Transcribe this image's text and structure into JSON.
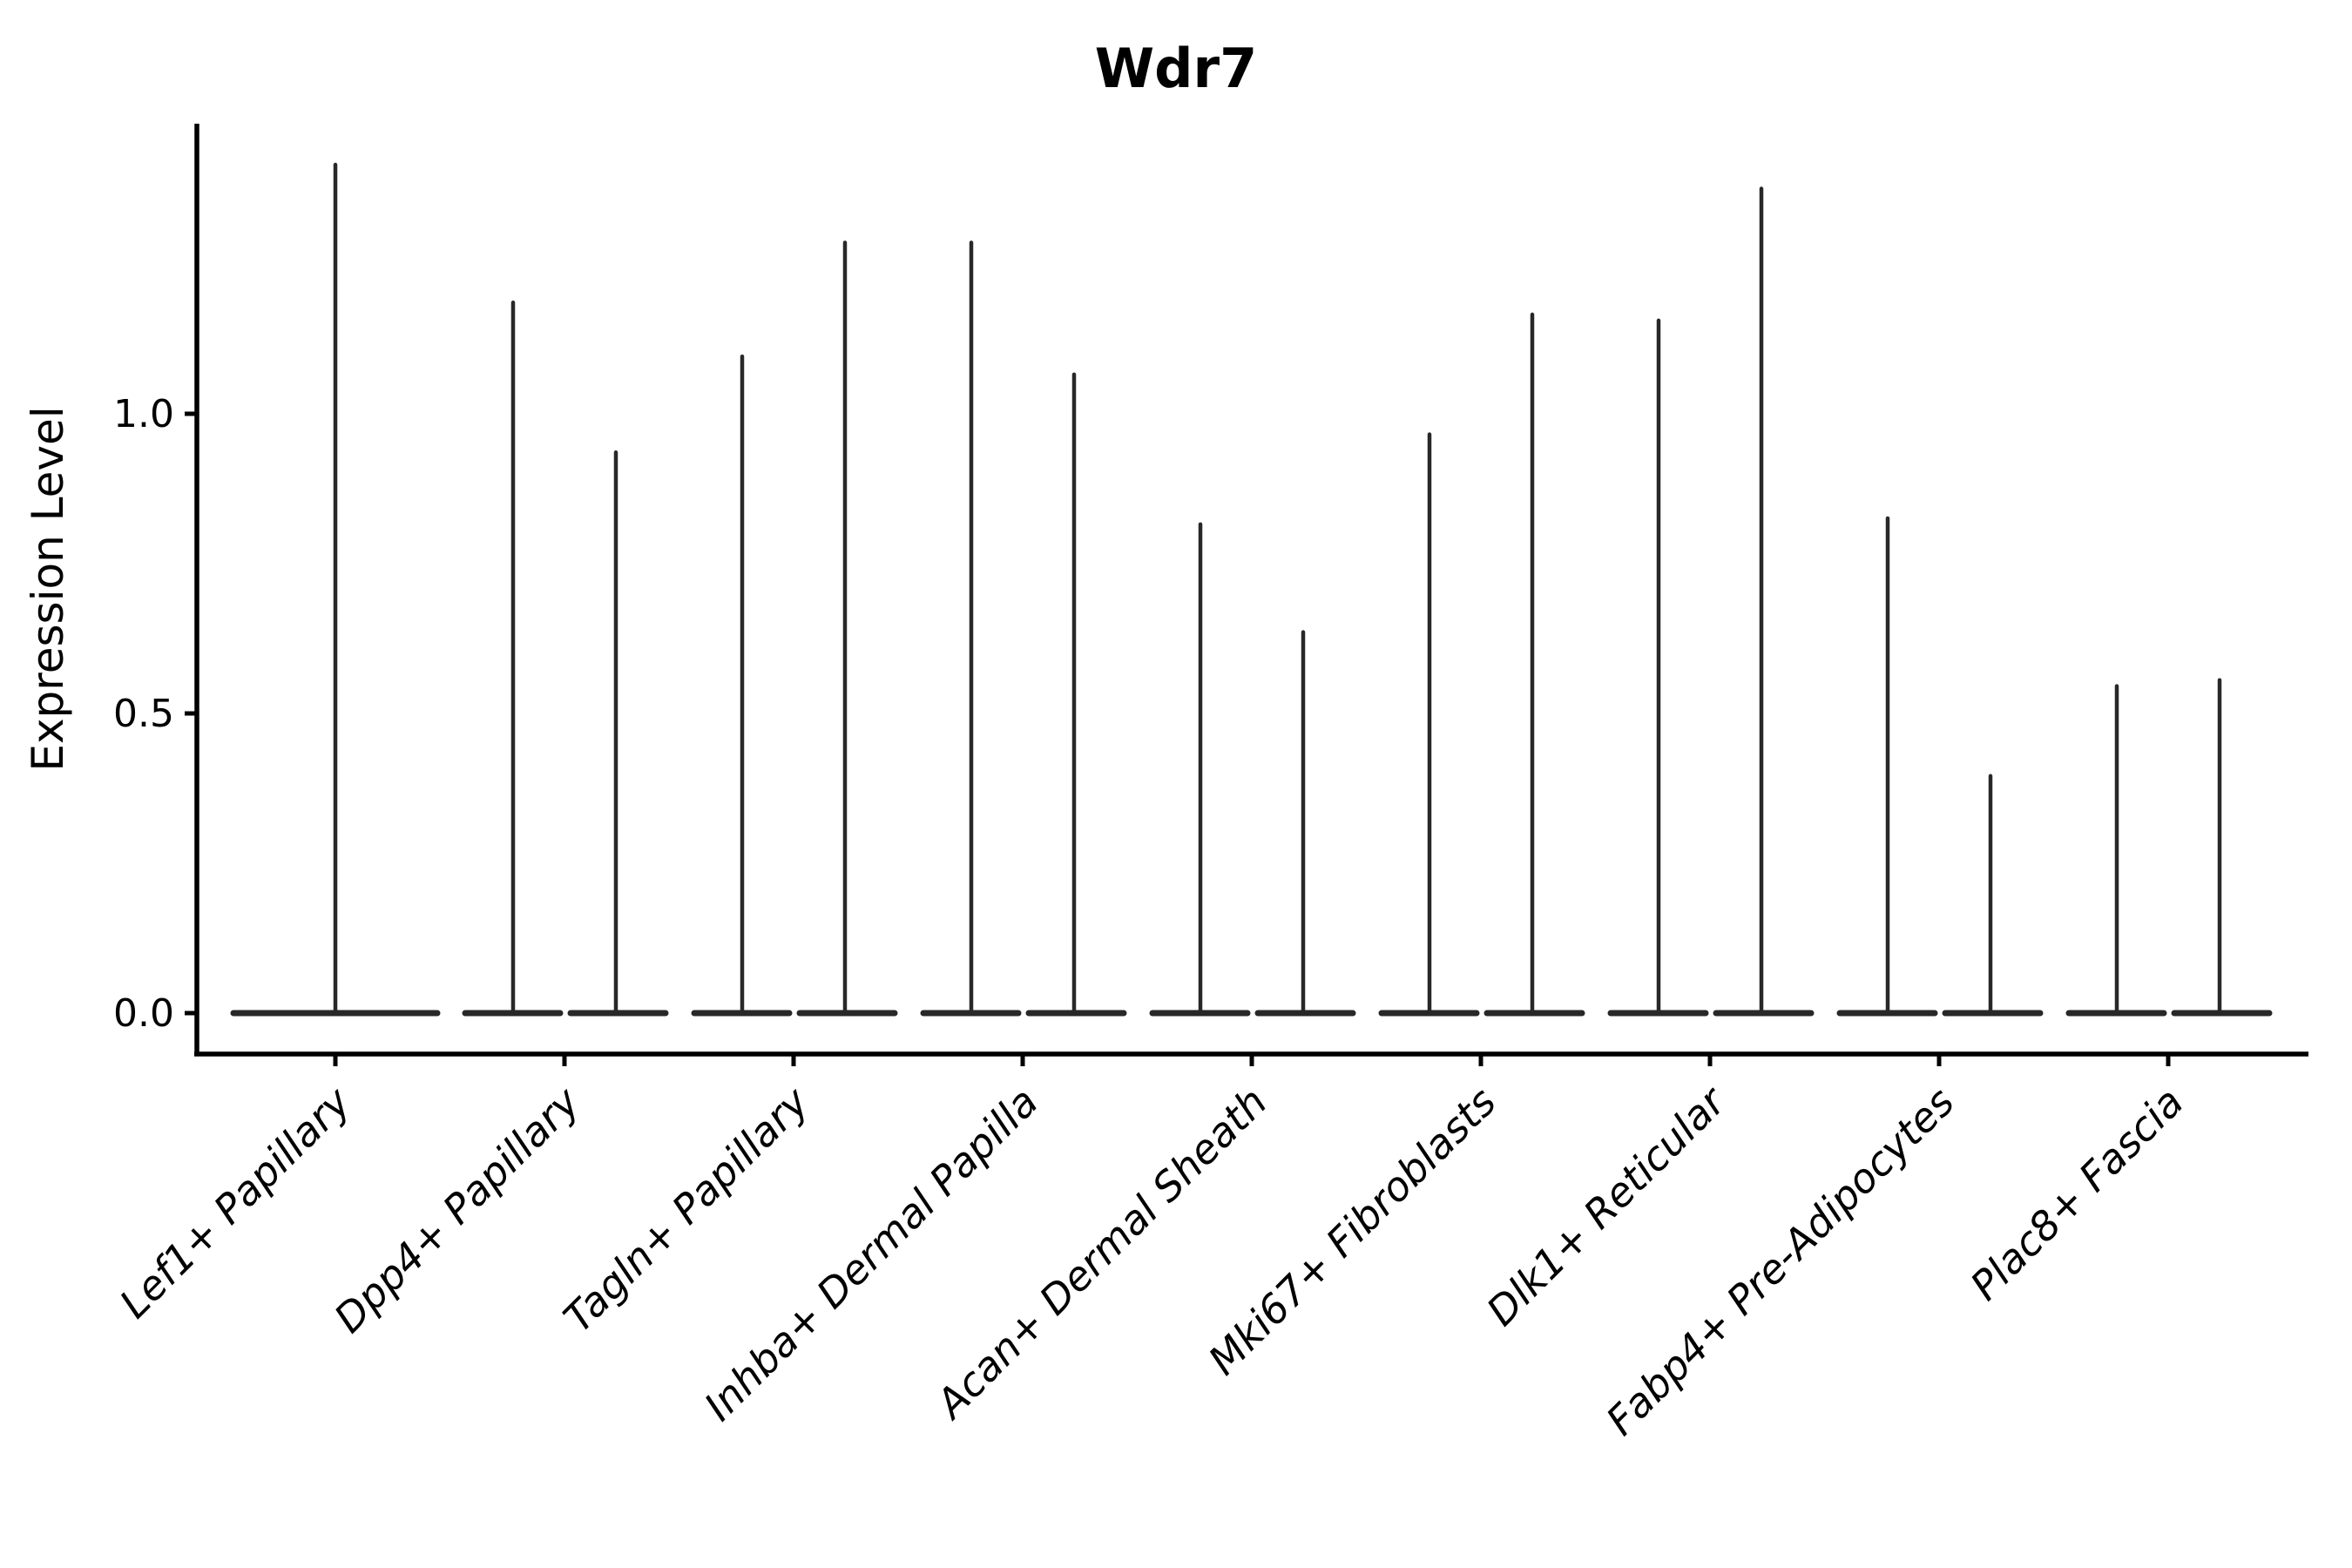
{
  "title": "Wdr7",
  "ylabel": "Expression Level",
  "chart_data": {
    "type": "violin",
    "title": "Wdr7",
    "xlabel": "",
    "ylabel": "Expression Level",
    "ylim": [
      -0.07,
      1.48
    ],
    "yticks": [
      0.0,
      0.5,
      1.0
    ],
    "ytick_labels": [
      "0.0",
      "0.5",
      "1.0"
    ],
    "grid": false,
    "legend": "none",
    "x_tick_rotation": 45,
    "note": "Each category shows thin split violins: a flat base at 0 and hairline spikes up to the max expression value. First category has a single centered violin.",
    "categories": [
      "Lef1+ Papillary",
      "Dpp4+ Papillary",
      "Tagln+ Papillary",
      "Inhba+ Dermal Papilla",
      "Acan+ Dermal Sheath",
      "Mki67+ Fibroblasts",
      "Dlk1+ Reticular",
      "Fabp4+ Pre-Adipocytes",
      "Plac8+ Fascia"
    ],
    "violin_max_values": [
      [
        1.42
      ],
      [
        1.19,
        0.94
      ],
      [
        1.1,
        1.29
      ],
      [
        1.29,
        1.07
      ],
      [
        0.82,
        0.64
      ],
      [
        0.97,
        1.17
      ],
      [
        1.16,
        1.38
      ],
      [
        0.83,
        0.4
      ],
      [
        0.55,
        0.56
      ]
    ]
  },
  "style": {
    "violin_color": "#282828",
    "axis_color": "#000000",
    "text_color": "#000000",
    "background": "#ffffff"
  }
}
